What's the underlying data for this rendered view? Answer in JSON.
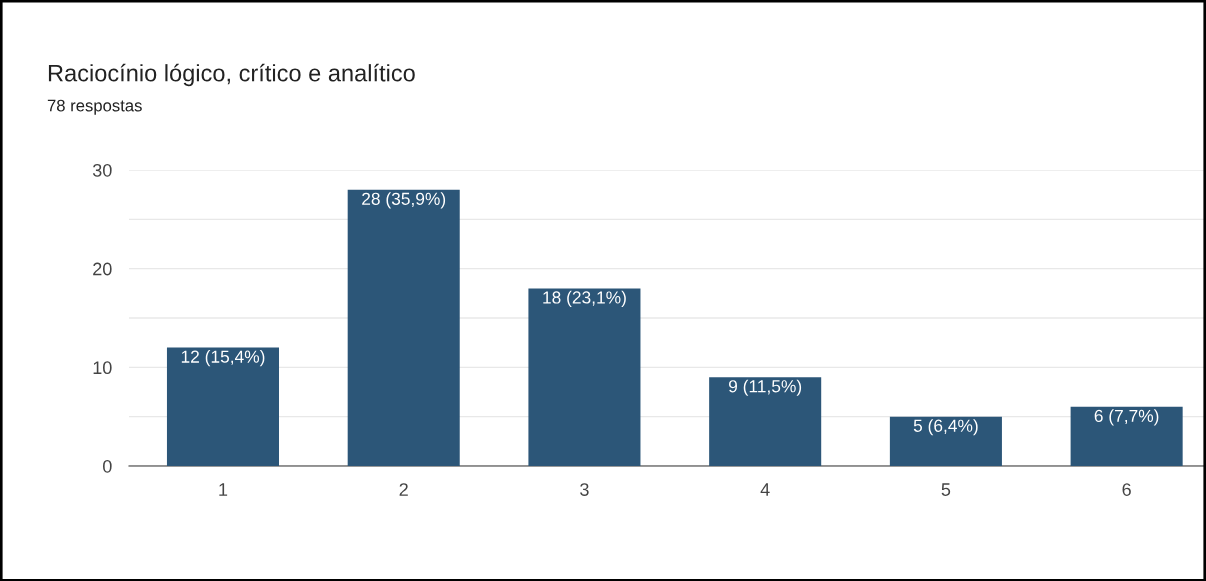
{
  "chart_data": {
    "type": "bar",
    "title": "Raciocínio lógico, crítico e analítico",
    "subtitle": "78 respostas",
    "categories": [
      "1",
      "2",
      "3",
      "4",
      "5",
      "6"
    ],
    "values": [
      12,
      28,
      18,
      9,
      5,
      6
    ],
    "value_labels": [
      "12 (15,4%)",
      "28 (35,9%)",
      "18 (23,1%)",
      "9 (11,5%)",
      "5 (6,4%)",
      "6 (7,7%)"
    ],
    "color": "#2c5678",
    "ylim": [
      0,
      30
    ],
    "yticks": [
      0,
      {
        "value": 5,
        "label": null
      },
      10,
      {
        "value": 15,
        "label": null
      },
      20,
      {
        "value": 25,
        "label": null
      },
      30
    ],
    "grid": "y"
  }
}
